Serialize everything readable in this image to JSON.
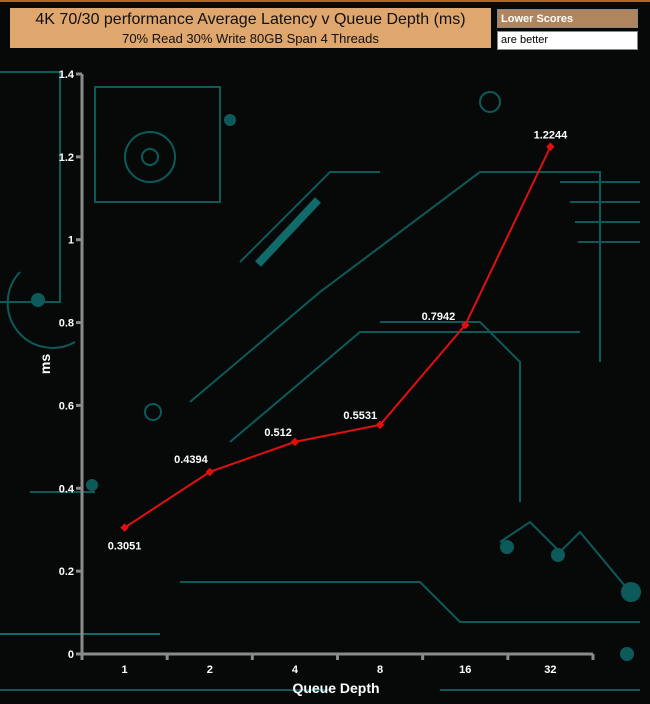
{
  "legend": {
    "line1": "Lower Scores",
    "line2": "are better"
  },
  "colors": {
    "line": "#e01010",
    "title_bg": "#dfa66e",
    "legend_bg": "#b0855d",
    "circuit": "#0d5a5a"
  },
  "chart_data": {
    "type": "line",
    "title": "4K 70/30 performance Average Latency v Queue Depth (ms)",
    "subtitle": "70% Read 30% Write 80GB Span 4 Threads",
    "xlabel": "Queue Depth",
    "ylabel": "ms",
    "categories": [
      "1",
      "2",
      "4",
      "8",
      "16",
      "32"
    ],
    "values": [
      0.3051,
      0.4394,
      0.512,
      0.5531,
      0.7942,
      1.2244
    ],
    "data_labels": [
      "0.3051",
      "0.4394",
      "0.512",
      "0.5531",
      "0.7942",
      "1.2244"
    ],
    "ylim": [
      0,
      1.4
    ],
    "yticks": [
      "0",
      "0.2",
      "0.4",
      "0.6",
      "0.8",
      "1",
      "1.2",
      "1.4"
    ],
    "grid": false,
    "legend": "none"
  }
}
